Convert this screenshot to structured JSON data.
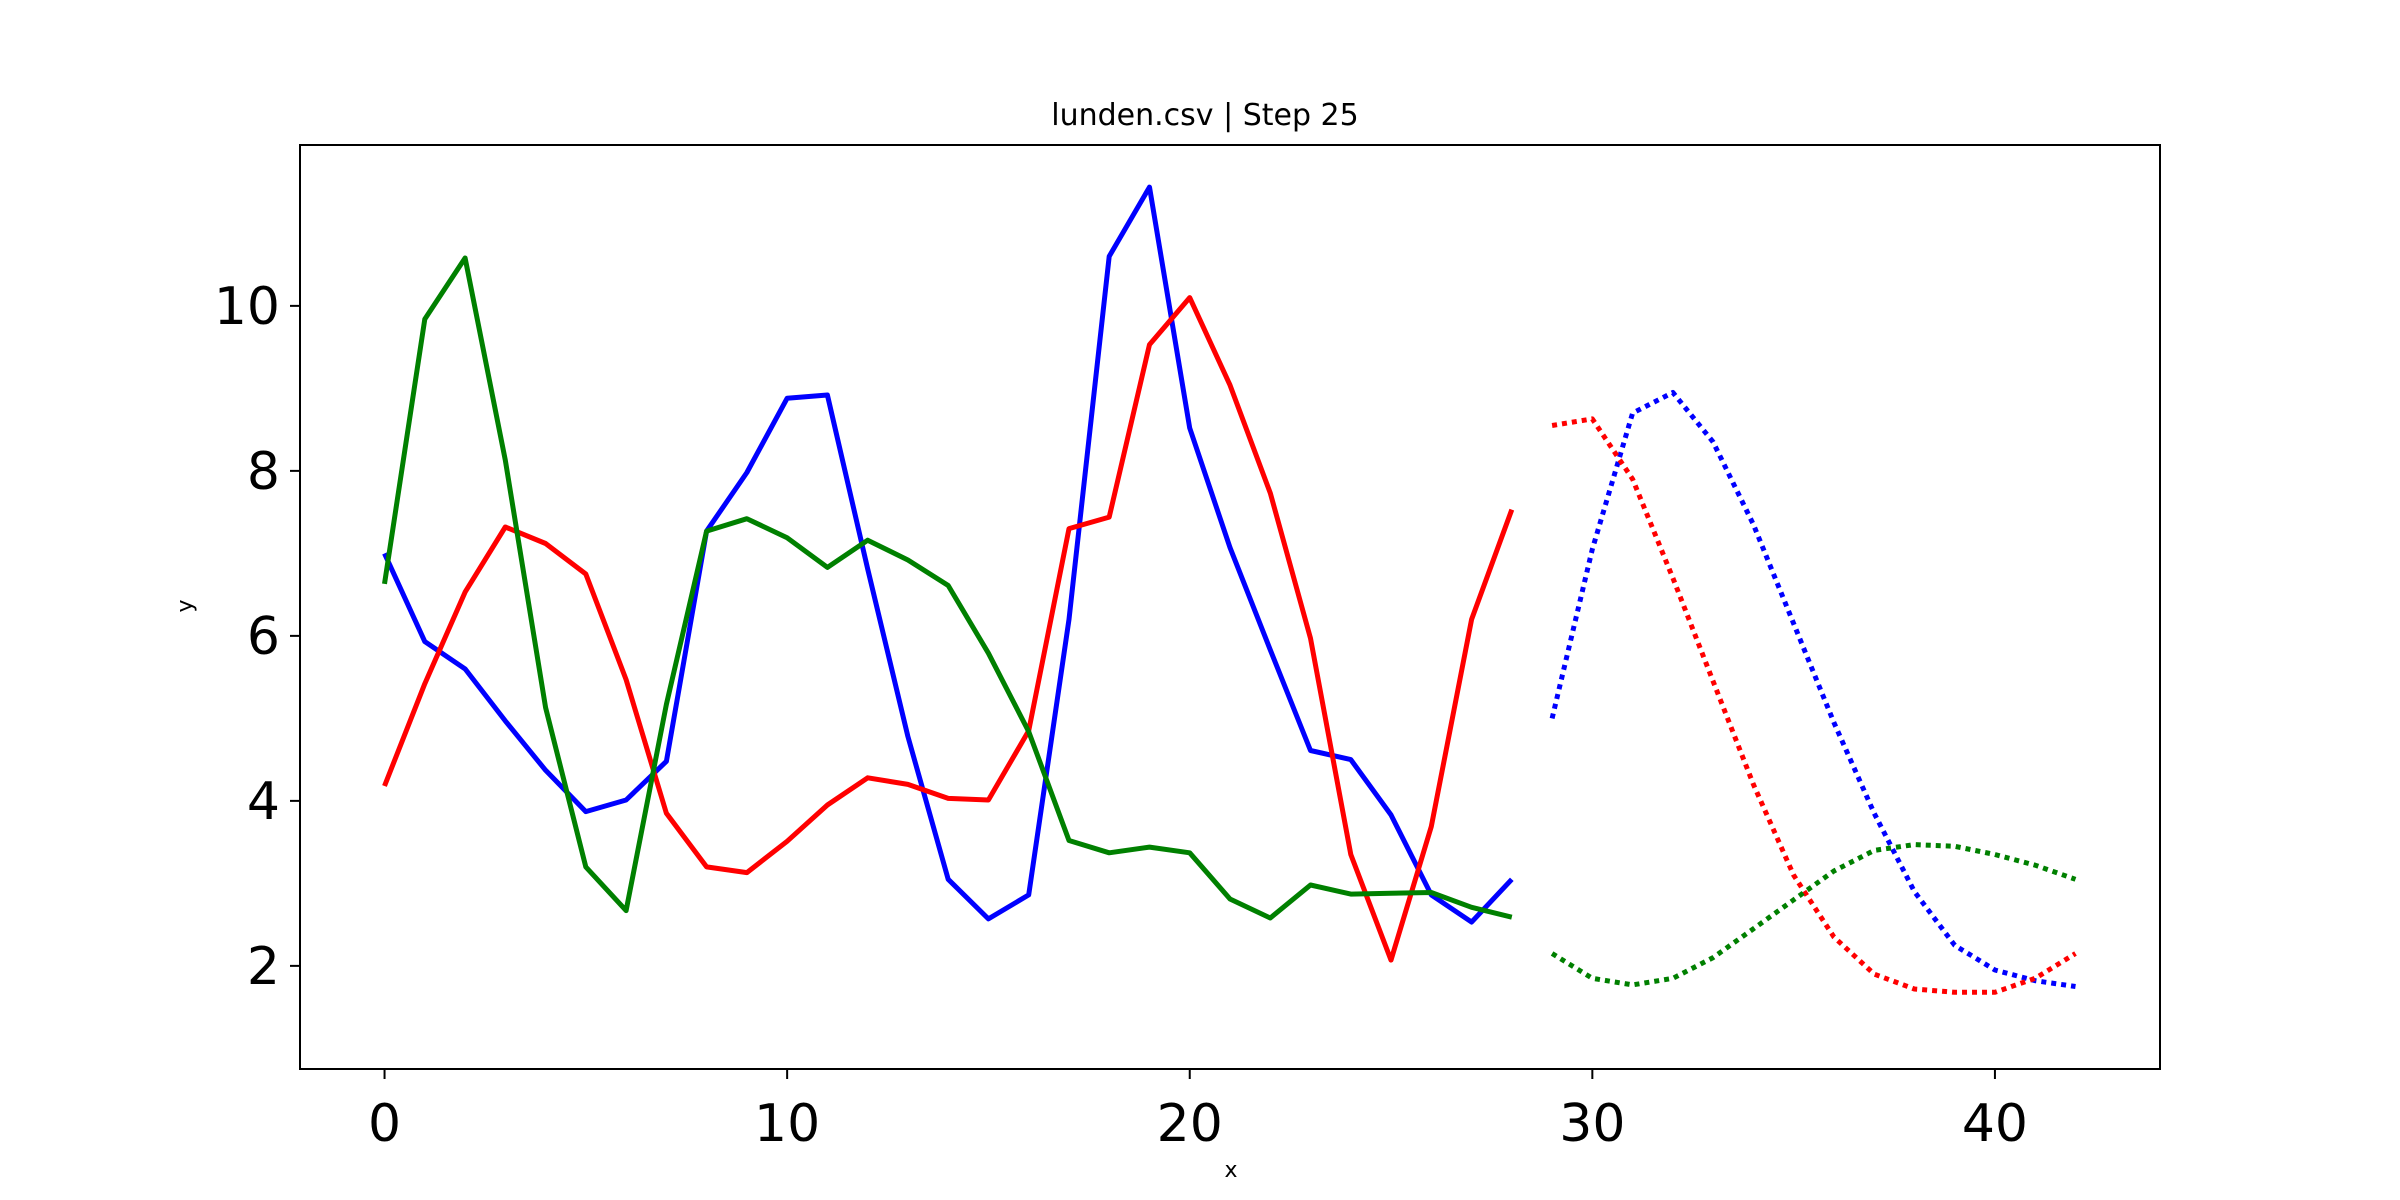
{
  "chart_data": {
    "type": "line",
    "title": "lunden.csv | Step 25",
    "xlabel": "x",
    "ylabel": "y",
    "xlim": [
      -2.1,
      44.1
    ],
    "ylim": [
      0.75,
      11.95
    ],
    "xticks": [
      0,
      10,
      20,
      30,
      40
    ],
    "yticks": [
      2,
      4,
      6,
      8,
      10
    ],
    "grid": false,
    "legend": "none",
    "series": [
      {
        "color": "#0000ff",
        "style": "solid",
        "x": [
          0,
          1,
          2,
          3,
          4,
          5,
          6,
          7,
          8,
          9,
          10,
          11,
          12,
          13,
          14,
          15,
          16,
          17,
          18,
          19,
          20,
          21,
          22,
          23,
          24,
          25,
          26,
          27,
          28
        ],
        "values": [
          7.0,
          5.93,
          5.6,
          4.97,
          4.37,
          3.87,
          4.01,
          4.48,
          7.27,
          7.98,
          8.88,
          8.92,
          6.81,
          4.78,
          3.05,
          2.57,
          2.86,
          6.2,
          10.6,
          11.44,
          8.52,
          7.07,
          5.83,
          4.61,
          4.5,
          3.83,
          2.86,
          2.53,
          3.05
        ]
      },
      {
        "color": "#ff0000",
        "style": "solid",
        "x": [
          0,
          1,
          2,
          3,
          4,
          5,
          6,
          7,
          8,
          9,
          10,
          11,
          12,
          13,
          14,
          15,
          16,
          17,
          18,
          19,
          20,
          21,
          22,
          23,
          24,
          25,
          26,
          27,
          28
        ],
        "values": [
          4.18,
          5.42,
          6.53,
          7.32,
          7.12,
          6.75,
          5.47,
          3.85,
          3.2,
          3.13,
          3.51,
          3.95,
          4.28,
          4.2,
          4.03,
          4.01,
          4.85,
          7.3,
          7.44,
          9.53,
          10.1,
          9.04,
          7.73,
          5.97,
          3.35,
          2.07,
          3.69,
          6.2,
          7.53
        ]
      },
      {
        "color": "#008000",
        "style": "solid",
        "x": [
          0,
          1,
          2,
          3,
          4,
          5,
          6,
          7,
          8,
          9,
          10,
          11,
          12,
          13,
          14,
          15,
          16,
          17,
          18,
          19,
          20,
          21,
          22,
          23,
          24,
          25,
          26,
          27,
          28
        ],
        "values": [
          6.63,
          9.84,
          10.58,
          8.13,
          5.13,
          3.2,
          2.67,
          5.17,
          7.27,
          7.42,
          7.19,
          6.83,
          7.16,
          6.92,
          6.61,
          5.79,
          4.84,
          3.52,
          3.37,
          3.44,
          3.37,
          2.81,
          2.58,
          2.98,
          2.87,
          2.88,
          2.89,
          2.71,
          2.59
        ]
      },
      {
        "color": "#0000ff",
        "style": "dotted",
        "x": [
          29,
          30,
          31,
          32,
          33,
          34,
          35,
          36,
          37,
          38,
          39,
          40,
          41,
          42
        ],
        "values": [
          5.0,
          7.05,
          8.7,
          8.95,
          8.35,
          7.35,
          6.15,
          4.95,
          3.85,
          2.9,
          2.25,
          1.95,
          1.82,
          1.75
        ]
      },
      {
        "color": "#ff0000",
        "style": "dotted",
        "x": [
          29,
          30,
          31,
          32,
          33,
          34,
          35,
          36,
          37,
          38,
          39,
          40,
          41,
          42
        ],
        "values": [
          8.55,
          8.63,
          7.9,
          6.7,
          5.45,
          4.2,
          3.1,
          2.35,
          1.9,
          1.72,
          1.68,
          1.68,
          1.85,
          2.15
        ]
      },
      {
        "color": "#008000",
        "style": "dotted",
        "x": [
          29,
          30,
          31,
          32,
          33,
          34,
          35,
          36,
          37,
          38,
          39,
          40,
          41,
          42
        ],
        "values": [
          2.15,
          1.85,
          1.77,
          1.85,
          2.1,
          2.45,
          2.8,
          3.15,
          3.4,
          3.47,
          3.45,
          3.35,
          3.22,
          3.05
        ]
      }
    ]
  }
}
